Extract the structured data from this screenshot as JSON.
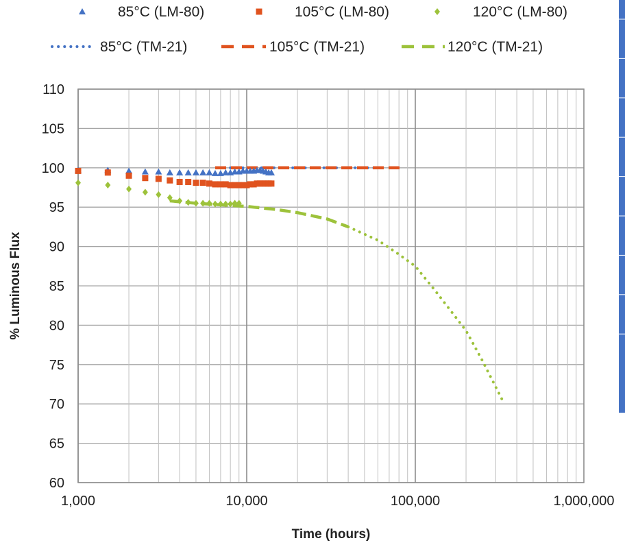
{
  "chart_data": {
    "type": "scatter",
    "title": "",
    "xlabel": "Time (hours)",
    "ylabel": "% Luminous Flux",
    "x_scale": "log",
    "xlim": [
      1000,
      1000000
    ],
    "ylim": [
      60,
      110
    ],
    "x_ticks": [
      1000,
      10000,
      100000,
      1000000
    ],
    "x_tick_labels": [
      "1,000",
      "10,000",
      "100,000",
      "1,000,000"
    ],
    "y_ticks": [
      60,
      65,
      70,
      75,
      80,
      85,
      90,
      95,
      100,
      105,
      110
    ],
    "grid": true,
    "legend_position": "top",
    "series": [
      {
        "name": "85°C (LM-80)",
        "kind": "markers",
        "marker": "triangle",
        "color": "#4472C4",
        "x": [
          1000,
          1500,
          2000,
          2500,
          3000,
          3500,
          4000,
          4500,
          5000,
          5500,
          6000,
          6500,
          7000,
          7500,
          8000,
          8500,
          9000,
          9500,
          10000,
          10500,
          11000,
          11500,
          12000,
          12500,
          13000,
          13500,
          14000
        ],
        "y": [
          99.7,
          99.7,
          99.6,
          99.5,
          99.5,
          99.4,
          99.4,
          99.4,
          99.4,
          99.4,
          99.4,
          99.3,
          99.3,
          99.4,
          99.4,
          99.5,
          99.5,
          99.6,
          99.6,
          99.6,
          99.6,
          99.7,
          99.7,
          99.6,
          99.5,
          99.4,
          99.4
        ]
      },
      {
        "name": "105°C (LM-80)",
        "kind": "markers",
        "marker": "square",
        "color": "#E0531F",
        "x": [
          1000,
          1500,
          2000,
          2500,
          3000,
          3500,
          4000,
          4500,
          5000,
          5500,
          6000,
          6500,
          7000,
          7500,
          8000,
          8500,
          9000,
          9500,
          10000,
          10500,
          11000,
          11500,
          12000,
          12500,
          13000,
          13500,
          14000
        ],
        "y": [
          99.6,
          99.4,
          99.0,
          98.7,
          98.6,
          98.4,
          98.2,
          98.2,
          98.1,
          98.1,
          98.0,
          97.9,
          97.9,
          97.9,
          97.8,
          97.8,
          97.8,
          97.8,
          97.8,
          97.9,
          97.9,
          98.0,
          98.0,
          98.0,
          98.0,
          98.0,
          98.0
        ]
      },
      {
        "name": "120°C (LM-80)",
        "kind": "markers",
        "marker": "diamond",
        "color": "#9DC23B",
        "x": [
          1000,
          1500,
          2000,
          2500,
          3000,
          3500,
          4000,
          4500,
          5000,
          5500,
          6000,
          6500,
          7000,
          7500,
          8000,
          8500,
          9000
        ],
        "y": [
          98.1,
          97.8,
          97.3,
          96.9,
          96.6,
          96.2,
          95.8,
          95.6,
          95.5,
          95.5,
          95.5,
          95.4,
          95.4,
          95.4,
          95.4,
          95.5,
          95.5
        ]
      },
      {
        "name": "85°C (TM-21)",
        "kind": "line",
        "dash": "dotted",
        "color": "#4472C4",
        "x": [
          8000,
          20000,
          40000,
          60000
        ],
        "y": [
          100,
          100,
          100,
          100
        ]
      },
      {
        "name": "105°C (TM-21)",
        "kind": "line",
        "dash": "dashed",
        "color": "#E0531F",
        "x": [
          6500,
          20000,
          50000,
          82000
        ],
        "y": [
          100,
          100,
          100,
          100
        ]
      },
      {
        "name": "120°C (TM-21)",
        "kind": "line",
        "dash": "dashed",
        "color": "#9DC23B",
        "x": [
          3500,
          5000,
          7000,
          10000,
          15000,
          20000,
          30000,
          40000
        ],
        "y": [
          95.8,
          95.5,
          95.3,
          95.1,
          94.7,
          94.3,
          93.5,
          92.5
        ]
      },
      {
        "name": "120°C (TM-21) extrapolation",
        "kind": "line",
        "dash": "dotted",
        "color": "#9DC23B",
        "x": [
          40000,
          60000,
          80000,
          100000,
          130000,
          160000,
          200000,
          250000,
          330000
        ],
        "y": [
          92.5,
          90.8,
          89.0,
          87.5,
          84.5,
          82.0,
          79.3,
          75.5,
          70.4
        ]
      }
    ],
    "legend": [
      {
        "label": "85°C (LM-80)",
        "symbol": "triangle",
        "color": "#4472C4"
      },
      {
        "label": "105°C (LM-80)",
        "symbol": "square",
        "color": "#E0531F"
      },
      {
        "label": "120°C (LM-80)",
        "symbol": "diamond",
        "color": "#9DC23B"
      },
      {
        "label": "85°C (TM-21)",
        "symbol": "dotted-line",
        "color": "#4472C4"
      },
      {
        "label": "105°C (TM-21)",
        "symbol": "dashed-line",
        "color": "#E0531F"
      },
      {
        "label": "120°C (TM-21)",
        "symbol": "dashed-line",
        "color": "#9DC23B"
      }
    ]
  },
  "side_panel": {
    "color": "#4472C4",
    "segments": 10
  }
}
